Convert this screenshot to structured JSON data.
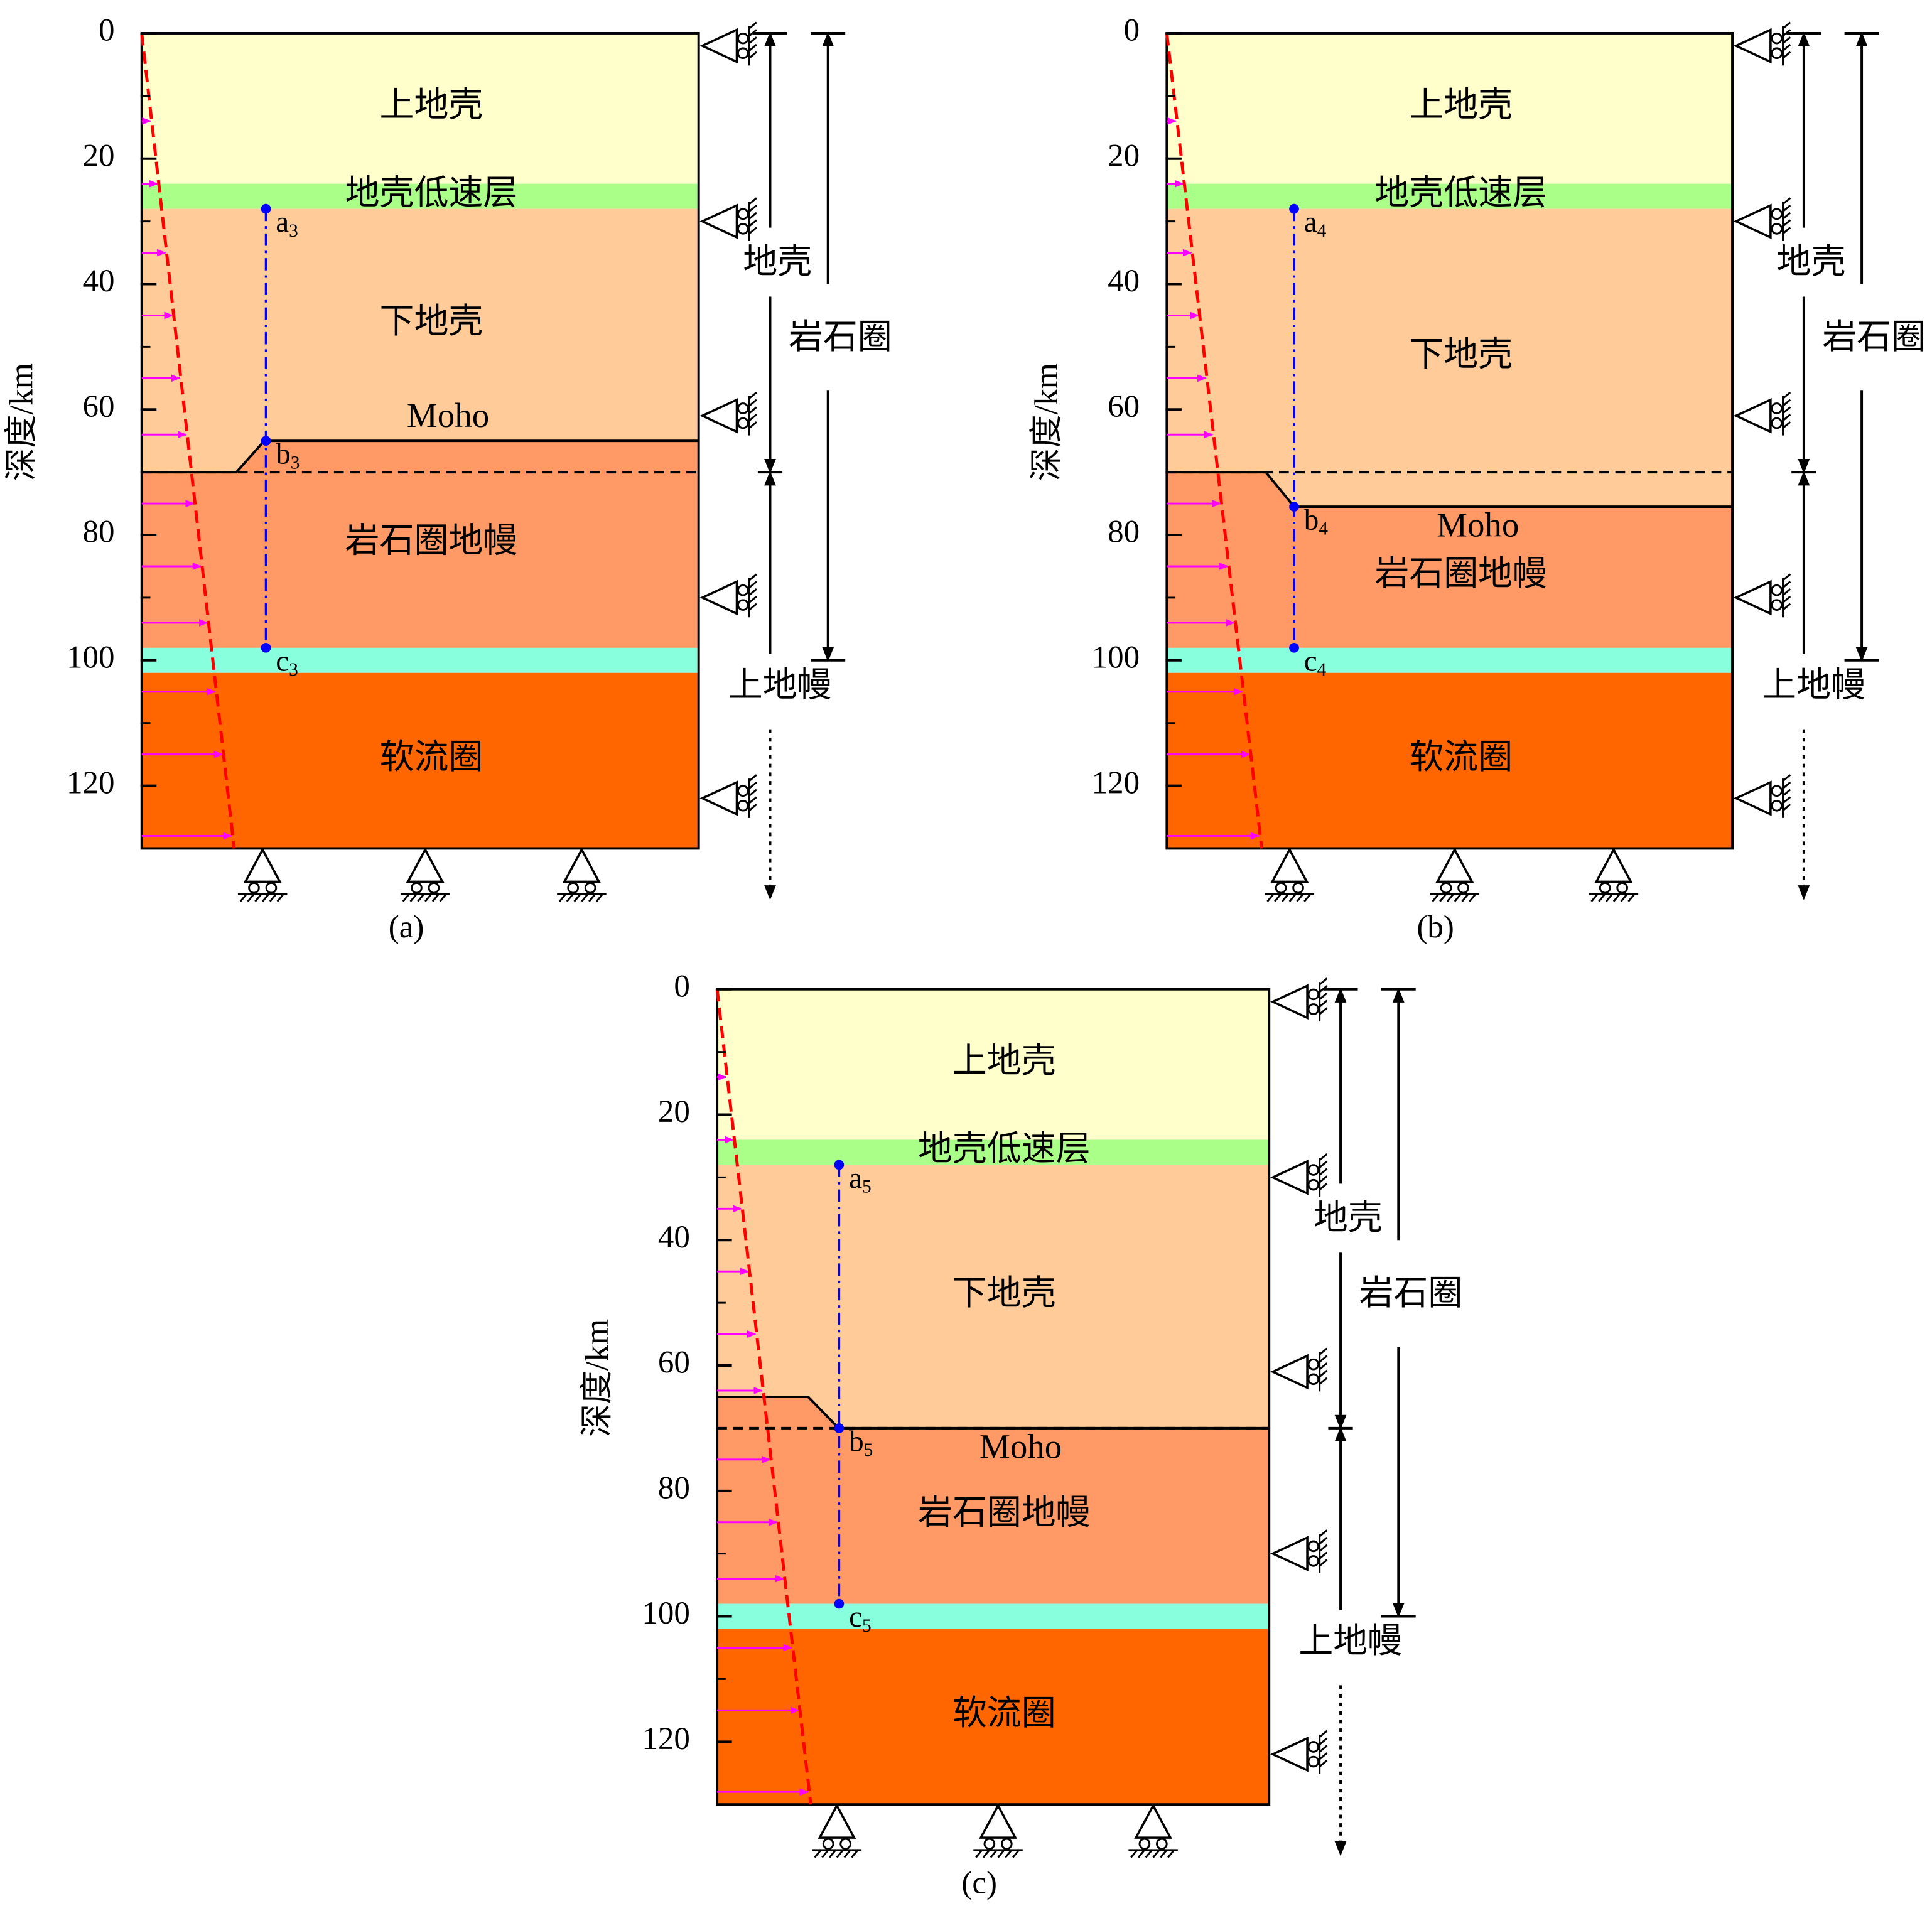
{
  "panels": [
    {
      "caption": "(a)",
      "y_axis_label": "深度/km",
      "yticks": [
        0,
        20,
        40,
        60,
        80,
        100,
        120
      ],
      "ylim": [
        0,
        130
      ],
      "layers": [
        {
          "label": "上地壳",
          "color": "#ffffcc",
          "top": 0,
          "bottom": 24
        },
        {
          "label": "地壳低速层",
          "color": "#aaff88",
          "top": 24,
          "bottom": 28
        },
        {
          "label": "下地壳",
          "color": "#ffcc99",
          "top": 28
        },
        {
          "label": "岩石圈地幔",
          "color": "#ff9966",
          "bottom": 98
        },
        {
          "color": "#88ffdd",
          "top": 98,
          "bottom": 102
        },
        {
          "label": "软流圈",
          "color": "#ff6600",
          "top": 102,
          "bottom": 130
        }
      ],
      "moho": {
        "label": "Moho",
        "left": 70,
        "right": 65
      },
      "points": [
        {
          "label": "a",
          "sub": "3",
          "depth": 28
        },
        {
          "label": "b",
          "sub": "3",
          "depth": 65
        },
        {
          "label": "c",
          "sub": "3",
          "depth": 98
        }
      ],
      "crust": {
        "label": "地壳",
        "base": 70
      },
      "lithosphere": {
        "label": "岩石圈",
        "base": 100
      },
      "upper_mantle": {
        "label": "上地幔"
      }
    },
    {
      "caption": "(b)",
      "y_axis_label": "深度/km",
      "yticks": [
        0,
        20,
        40,
        60,
        80,
        100,
        120
      ],
      "ylim": [
        0,
        130
      ],
      "layers": [
        {
          "label": "上地壳",
          "color": "#ffffcc",
          "top": 0,
          "bottom": 24
        },
        {
          "label": "地壳低速层",
          "color": "#aaff88",
          "top": 24,
          "bottom": 28
        },
        {
          "label": "下地壳",
          "color": "#ffcc99",
          "top": 28
        },
        {
          "label": "岩石圈地幔",
          "color": "#ff9966",
          "bottom": 98
        },
        {
          "color": "#88ffdd",
          "top": 98,
          "bottom": 102
        },
        {
          "label": "软流圈",
          "color": "#ff6600",
          "top": 102,
          "bottom": 130
        }
      ],
      "moho": {
        "label": "Moho",
        "left": 70,
        "right": 75.5
      },
      "points": [
        {
          "label": "a",
          "sub": "4",
          "depth": 28
        },
        {
          "label": "b",
          "sub": "4",
          "depth": 75.5
        },
        {
          "label": "c",
          "sub": "4",
          "depth": 98
        }
      ],
      "crust": {
        "label": "地壳",
        "base": 70
      },
      "lithosphere": {
        "label": "岩石圈",
        "base": 100
      },
      "upper_mantle": {
        "label": "上地幔"
      }
    },
    {
      "caption": "(c)",
      "y_axis_label": "深度/km",
      "yticks": [
        0,
        20,
        40,
        60,
        80,
        100,
        120
      ],
      "ylim": [
        0,
        130
      ],
      "layers": [
        {
          "label": "上地壳",
          "color": "#ffffcc",
          "top": 0,
          "bottom": 24
        },
        {
          "label": "地壳低速层",
          "color": "#aaff88",
          "top": 24,
          "bottom": 28
        },
        {
          "label": "下地壳",
          "color": "#ffcc99",
          "top": 28
        },
        {
          "label": "岩石圈地幔",
          "color": "#ff9966",
          "bottom": 98
        },
        {
          "color": "#88ffdd",
          "top": 98,
          "bottom": 102
        },
        {
          "label": "软流圈",
          "color": "#ff6600",
          "top": 102,
          "bottom": 130
        }
      ],
      "moho": {
        "label": "Moho",
        "left": 65,
        "right": 70
      },
      "points": [
        {
          "label": "a",
          "sub": "5",
          "depth": 28
        },
        {
          "label": "b",
          "sub": "5",
          "depth": 70
        },
        {
          "label": "c",
          "sub": "5",
          "depth": 98
        }
      ],
      "crust": {
        "label": "地壳",
        "base": 70
      },
      "lithosphere": {
        "label": "岩石圈",
        "base": 100
      },
      "upper_mantle": {
        "label": "上地幔"
      }
    }
  ]
}
